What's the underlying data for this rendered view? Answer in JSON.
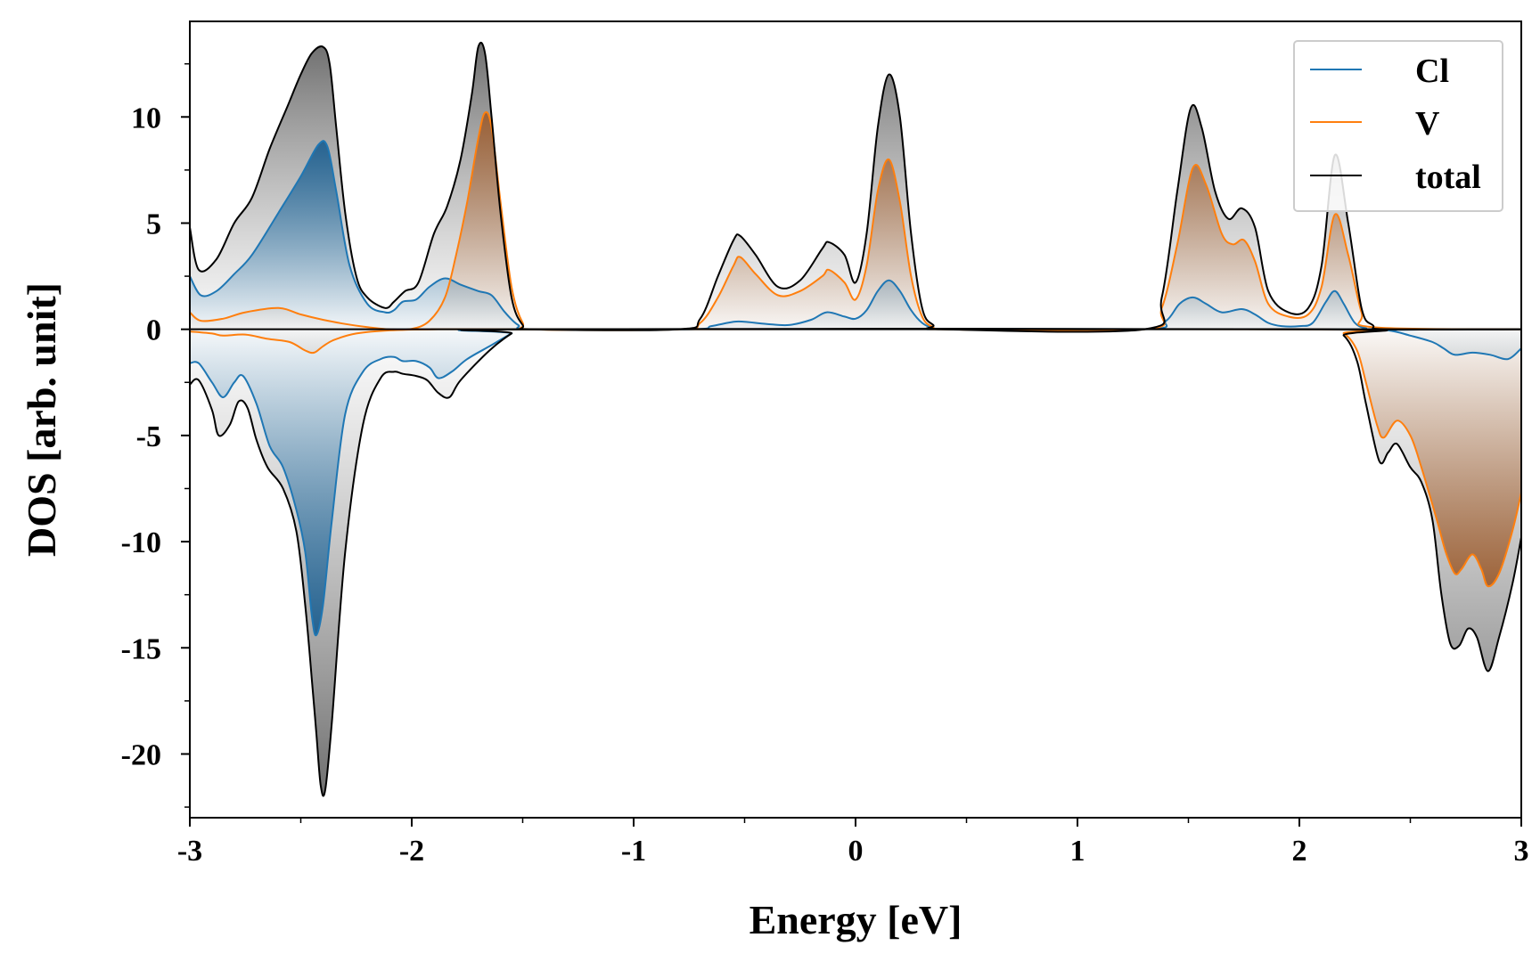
{
  "chart_data": {
    "type": "area",
    "title": "",
    "xlabel": "Energy [eV]",
    "ylabel": "DOS [arb. unit]",
    "xlim": [
      -3,
      3
    ],
    "ylim": [
      -23,
      14.5
    ],
    "xticks": [
      "-3",
      "-2",
      "-1",
      "0",
      "1",
      "2",
      "3"
    ],
    "xtick_values": [
      -3,
      -2,
      -1,
      0,
      1,
      2,
      3
    ],
    "yticks": [
      "10",
      "5",
      "0",
      "-5",
      "-10",
      "-15",
      "-20"
    ],
    "ytick_values": [
      10,
      5,
      0,
      -5,
      -10,
      -15,
      -20
    ],
    "grid": false,
    "legend_position": "top-right",
    "colors": {
      "Cl": "#1f77b4",
      "V": "#ff7f0e",
      "total": "#000000"
    },
    "series": [
      {
        "name": "Cl",
        "spin": "up",
        "x": [
          -3.0,
          -2.95,
          -2.88,
          -2.8,
          -2.72,
          -2.6,
          -2.5,
          -2.42,
          -2.38,
          -2.34,
          -2.28,
          -2.2,
          -2.12,
          -2.08,
          -2.04,
          -1.98,
          -1.92,
          -1.85,
          -1.78,
          -1.7,
          -1.64,
          -1.58,
          -1.52,
          -1.45,
          -0.75,
          -0.65,
          -0.55,
          -0.5,
          -0.4,
          -0.3,
          -0.2,
          -0.13,
          -0.05,
          0.0,
          0.05,
          0.1,
          0.15,
          0.2,
          0.25,
          0.3,
          0.35,
          0.4,
          1.3,
          1.4,
          1.46,
          1.52,
          1.58,
          1.65,
          1.74,
          1.8,
          1.86,
          1.92,
          2.0,
          2.06,
          2.12,
          2.16,
          2.2,
          2.25,
          2.3,
          2.35,
          3.0
        ],
        "y": [
          2.5,
          1.6,
          1.8,
          2.6,
          3.5,
          5.5,
          7.2,
          8.7,
          8.6,
          6.5,
          3.0,
          1.2,
          0.8,
          0.9,
          1.3,
          1.4,
          2.0,
          2.4,
          2.1,
          1.8,
          1.6,
          0.8,
          0.2,
          0.0,
          0.0,
          0.15,
          0.35,
          0.35,
          0.25,
          0.2,
          0.45,
          0.8,
          0.6,
          0.5,
          0.9,
          1.8,
          2.3,
          1.8,
          0.9,
          0.3,
          0.05,
          0.0,
          0.0,
          0.4,
          1.2,
          1.5,
          1.2,
          0.8,
          0.95,
          0.7,
          0.3,
          0.15,
          0.15,
          0.3,
          1.3,
          1.8,
          1.2,
          0.3,
          0.05,
          0.0,
          0.0
        ]
      },
      {
        "name": "V",
        "spin": "up",
        "x": [
          -3.0,
          -2.95,
          -2.85,
          -2.75,
          -2.6,
          -2.5,
          -2.4,
          -2.3,
          -2.2,
          -2.1,
          -2.0,
          -1.92,
          -1.85,
          -1.8,
          -1.75,
          -1.7,
          -1.67,
          -1.64,
          -1.6,
          -1.55,
          -1.5,
          -1.45,
          -0.8,
          -0.7,
          -0.62,
          -0.55,
          -0.52,
          -0.45,
          -0.35,
          -0.25,
          -0.15,
          -0.12,
          -0.05,
          0.0,
          0.05,
          0.1,
          0.15,
          0.2,
          0.25,
          0.3,
          0.35,
          0.4,
          1.3,
          1.38,
          1.45,
          1.52,
          1.58,
          1.65,
          1.7,
          1.75,
          1.8,
          1.86,
          1.95,
          2.04,
          2.1,
          2.16,
          2.22,
          2.28,
          2.33,
          3.0
        ],
        "y": [
          0.8,
          0.4,
          0.5,
          0.8,
          1.0,
          0.7,
          0.45,
          0.25,
          0.1,
          0.0,
          0.02,
          0.4,
          1.5,
          3.5,
          6.0,
          9.0,
          10.2,
          9.5,
          6.0,
          2.0,
          0.3,
          0.0,
          0.0,
          0.3,
          1.5,
          3.0,
          3.4,
          2.6,
          1.6,
          1.8,
          2.5,
          2.8,
          2.2,
          1.4,
          3.0,
          6.5,
          8.0,
          6.0,
          2.5,
          0.6,
          0.1,
          0.0,
          0.0,
          1.0,
          4.0,
          7.6,
          6.8,
          4.5,
          4.0,
          4.2,
          3.2,
          1.2,
          0.6,
          0.7,
          2.0,
          5.4,
          3.5,
          0.8,
          0.1,
          0.0
        ]
      },
      {
        "name": "total",
        "spin": "up",
        "x": [
          -3.0,
          -2.96,
          -2.88,
          -2.8,
          -2.72,
          -2.64,
          -2.56,
          -2.5,
          -2.45,
          -2.4,
          -2.37,
          -2.34,
          -2.3,
          -2.25,
          -2.2,
          -2.12,
          -2.08,
          -2.03,
          -1.97,
          -1.9,
          -1.84,
          -1.78,
          -1.73,
          -1.7,
          -1.67,
          -1.64,
          -1.6,
          -1.55,
          -1.5,
          -1.45,
          -0.8,
          -0.7,
          -0.62,
          -0.55,
          -0.52,
          -0.45,
          -0.35,
          -0.25,
          -0.15,
          -0.12,
          -0.05,
          0.0,
          0.05,
          0.1,
          0.15,
          0.2,
          0.25,
          0.3,
          0.35,
          0.4,
          1.3,
          1.38,
          1.45,
          1.51,
          1.56,
          1.62,
          1.68,
          1.74,
          1.8,
          1.86,
          1.95,
          2.04,
          2.1,
          2.16,
          2.22,
          2.28,
          2.33,
          2.4,
          3.0
        ],
        "y": [
          4.8,
          2.8,
          3.3,
          5.0,
          6.2,
          8.5,
          10.5,
          12.0,
          13.0,
          13.3,
          12.5,
          9.5,
          5.5,
          2.5,
          1.5,
          1.0,
          1.3,
          1.8,
          2.2,
          4.5,
          5.8,
          8.0,
          11.0,
          13.3,
          13.0,
          10.0,
          5.5,
          1.5,
          0.2,
          0.0,
          0.0,
          0.5,
          2.5,
          4.2,
          4.4,
          3.5,
          2.0,
          2.3,
          3.8,
          4.1,
          3.5,
          2.2,
          4.5,
          9.5,
          12.0,
          10.0,
          4.5,
          1.0,
          0.2,
          0.0,
          0.0,
          1.5,
          6.5,
          10.4,
          9.5,
          6.5,
          5.2,
          5.7,
          4.8,
          1.8,
          0.8,
          1.0,
          3.0,
          8.2,
          5.0,
          1.0,
          0.2,
          0.0,
          0.0
        ]
      },
      {
        "name": "Cl",
        "spin": "down",
        "x": [
          -3.0,
          -2.96,
          -2.9,
          -2.85,
          -2.8,
          -2.76,
          -2.7,
          -2.64,
          -2.58,
          -2.52,
          -2.48,
          -2.45,
          -2.43,
          -2.4,
          -2.36,
          -2.3,
          -2.22,
          -2.14,
          -2.08,
          -2.04,
          -1.98,
          -1.92,
          -1.88,
          -1.82,
          -1.75,
          -1.65,
          -1.55,
          -1.5,
          2.25,
          2.4,
          2.5,
          2.6,
          2.65,
          2.7,
          2.78,
          2.86,
          2.94,
          3.0
        ],
        "y": [
          -1.6,
          -1.6,
          -2.5,
          -3.2,
          -2.5,
          -2.2,
          -3.5,
          -5.5,
          -6.5,
          -8.5,
          -10.5,
          -13.5,
          -14.4,
          -13.0,
          -9.0,
          -4.0,
          -2.0,
          -1.4,
          -1.3,
          -1.5,
          -1.5,
          -1.8,
          -2.3,
          -2.0,
          -1.4,
          -0.8,
          -0.2,
          0.0,
          0.0,
          -0.05,
          -0.3,
          -0.6,
          -0.9,
          -1.2,
          -1.1,
          -1.2,
          -1.4,
          -0.9
        ]
      },
      {
        "name": "V",
        "spin": "down",
        "x": [
          -3.0,
          -2.9,
          -2.85,
          -2.75,
          -2.65,
          -2.55,
          -2.48,
          -2.44,
          -2.4,
          -2.35,
          -2.25,
          -2.1,
          -1.9,
          -1.5,
          2.1,
          2.2,
          2.26,
          2.3,
          2.35,
          2.38,
          2.44,
          2.5,
          2.55,
          2.62,
          2.66,
          2.7,
          2.73,
          2.78,
          2.82,
          2.85,
          2.9,
          2.96,
          3.0
        ],
        "y": [
          -0.1,
          -0.2,
          -0.3,
          -0.25,
          -0.45,
          -0.6,
          -1.0,
          -1.1,
          -0.8,
          -0.5,
          -0.2,
          -0.05,
          0.0,
          0.0,
          0.0,
          -0.2,
          -1.0,
          -2.5,
          -4.5,
          -5.1,
          -4.3,
          -5.0,
          -6.5,
          -9.0,
          -10.5,
          -11.5,
          -11.3,
          -10.6,
          -11.3,
          -12.1,
          -11.5,
          -9.5,
          -7.7
        ]
      },
      {
        "name": "total",
        "spin": "down",
        "x": [
          -3.0,
          -2.96,
          -2.9,
          -2.87,
          -2.82,
          -2.78,
          -2.74,
          -2.7,
          -2.65,
          -2.58,
          -2.52,
          -2.48,
          -2.45,
          -2.43,
          -2.41,
          -2.39,
          -2.36,
          -2.3,
          -2.22,
          -2.14,
          -2.08,
          -2.04,
          -1.98,
          -1.93,
          -1.88,
          -1.83,
          -1.78,
          -1.65,
          -1.55,
          -1.5,
          2.1,
          2.2,
          2.26,
          2.3,
          2.36,
          2.4,
          2.44,
          2.5,
          2.55,
          2.6,
          2.64,
          2.68,
          2.72,
          2.76,
          2.8,
          2.85,
          2.9,
          2.96,
          3.0
        ],
        "y": [
          -2.6,
          -2.4,
          -3.8,
          -5.0,
          -4.5,
          -3.4,
          -3.7,
          -5.2,
          -6.5,
          -7.5,
          -9.5,
          -13.0,
          -16.5,
          -19.0,
          -21.5,
          -21.7,
          -18.5,
          -10.5,
          -4.5,
          -2.3,
          -2.0,
          -2.1,
          -2.2,
          -2.4,
          -3.0,
          -3.2,
          -2.4,
          -1.0,
          -0.2,
          0.0,
          0.0,
          -0.3,
          -1.5,
          -3.5,
          -6.2,
          -5.8,
          -5.4,
          -6.5,
          -7.2,
          -9.0,
          -12.5,
          -14.8,
          -14.9,
          -14.1,
          -14.5,
          -16.1,
          -14.5,
          -12.0,
          -9.8
        ]
      }
    ]
  }
}
